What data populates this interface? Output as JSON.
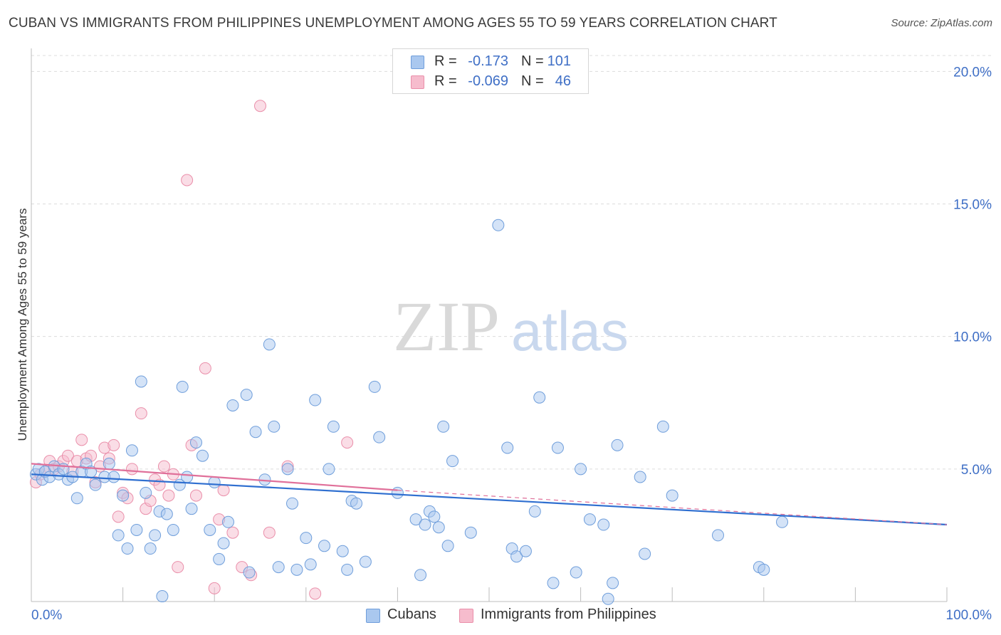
{
  "header": {
    "title": "CUBAN VS IMMIGRANTS FROM PHILIPPINES UNEMPLOYMENT AMONG AGES 55 TO 59 YEARS CORRELATION CHART",
    "source": "Source: ZipAtlas.com"
  },
  "watermark": {
    "zip": "ZIP",
    "atlas": "atlas"
  },
  "legend": {
    "rows": [
      {
        "r_label": "R =",
        "r_value": "-0.173",
        "n_label": "N =",
        "n_value": "101"
      },
      {
        "r_label": "R =",
        "r_value": "-0.069",
        "n_label": "N =",
        "n_value": "46"
      }
    ]
  },
  "bottom_legend": {
    "cubans": "Cubans",
    "philippines": "Immigrants from Philippines"
  },
  "chart_data": {
    "type": "scatter",
    "title": "CUBAN VS IMMIGRANTS FROM PHILIPPINES UNEMPLOYMENT AMONG AGES 55 TO 59 YEARS CORRELATION CHART",
    "xlabel": "",
    "ylabel": "Unemployment Among Ages 55 to 59 years",
    "xlim": [
      0,
      100
    ],
    "ylim": [
      0,
      20.6
    ],
    "x_tick_labels": [
      "0.0%",
      "100.0%"
    ],
    "y_ticks": [
      5,
      10,
      15,
      20
    ],
    "y_tick_labels": [
      "5.0%",
      "10.0%",
      "15.0%",
      "20.0%"
    ],
    "grid": true,
    "legend_position": "top-center",
    "colors": {
      "cubans_fill": "#aac8ef",
      "cubans_stroke": "#6f9edb",
      "cubans_line": "#2f6fd0",
      "phil_fill": "#f6bccd",
      "phil_stroke": "#ea8faa",
      "phil_line": "#e0709a",
      "axis_text": "#3f6fc6"
    },
    "series": [
      {
        "name": "Cubans",
        "r": -0.173,
        "n": 101,
        "trend": {
          "x": [
            0,
            100
          ],
          "y": [
            4.8,
            2.9
          ]
        },
        "points": [
          [
            0.5,
            4.8
          ],
          [
            0.8,
            5.0
          ],
          [
            1.2,
            4.6
          ],
          [
            1.5,
            4.9
          ],
          [
            2.0,
            4.7
          ],
          [
            2.5,
            5.1
          ],
          [
            3.0,
            4.8
          ],
          [
            3.5,
            5.0
          ],
          [
            4.0,
            4.6
          ],
          [
            4.5,
            4.7
          ],
          [
            5.0,
            3.9
          ],
          [
            5.5,
            4.9
          ],
          [
            6.0,
            5.2
          ],
          [
            6.5,
            4.9
          ],
          [
            7.0,
            4.4
          ],
          [
            8.0,
            4.7
          ],
          [
            8.5,
            5.2
          ],
          [
            9.0,
            4.7
          ],
          [
            9.5,
            2.5
          ],
          [
            10.0,
            4.0
          ],
          [
            10.5,
            2.0
          ],
          [
            11.0,
            5.7
          ],
          [
            11.5,
            2.7
          ],
          [
            12.0,
            8.3
          ],
          [
            12.5,
            4.1
          ],
          [
            13.0,
            2.0
          ],
          [
            13.5,
            2.5
          ],
          [
            14.0,
            3.4
          ],
          [
            14.3,
            0.2
          ],
          [
            14.8,
            3.3
          ],
          [
            15.5,
            2.7
          ],
          [
            16.2,
            4.4
          ],
          [
            16.5,
            8.1
          ],
          [
            17.0,
            4.7
          ],
          [
            17.5,
            3.5
          ],
          [
            18.0,
            6.0
          ],
          [
            18.7,
            5.5
          ],
          [
            19.5,
            2.7
          ],
          [
            20.0,
            4.5
          ],
          [
            20.5,
            1.6
          ],
          [
            21.0,
            2.2
          ],
          [
            21.5,
            3.0
          ],
          [
            22.0,
            7.4
          ],
          [
            23.5,
            7.8
          ],
          [
            23.8,
            1.1
          ],
          [
            24.5,
            6.4
          ],
          [
            25.5,
            4.6
          ],
          [
            26.0,
            9.7
          ],
          [
            26.5,
            6.6
          ],
          [
            27.0,
            1.3
          ],
          [
            28.0,
            5.0
          ],
          [
            28.5,
            3.7
          ],
          [
            29.0,
            1.2
          ],
          [
            30.0,
            2.4
          ],
          [
            30.5,
            1.4
          ],
          [
            31.0,
            7.6
          ],
          [
            32.0,
            2.1
          ],
          [
            32.5,
            5.0
          ],
          [
            33.0,
            6.6
          ],
          [
            34.0,
            1.9
          ],
          [
            34.5,
            1.2
          ],
          [
            35.0,
            3.8
          ],
          [
            35.5,
            3.7
          ],
          [
            36.5,
            1.5
          ],
          [
            37.5,
            8.1
          ],
          [
            38.0,
            6.2
          ],
          [
            40.0,
            4.1
          ],
          [
            42.0,
            3.1
          ],
          [
            42.5,
            1.0
          ],
          [
            43.0,
            2.9
          ],
          [
            43.5,
            3.4
          ],
          [
            44.0,
            3.2
          ],
          [
            44.5,
            2.8
          ],
          [
            45.0,
            6.6
          ],
          [
            45.5,
            2.1
          ],
          [
            46.0,
            5.3
          ],
          [
            48.0,
            2.6
          ],
          [
            51.0,
            14.2
          ],
          [
            52.0,
            5.8
          ],
          [
            52.5,
            2.0
          ],
          [
            53.0,
            1.7
          ],
          [
            54.0,
            1.9
          ],
          [
            55.0,
            3.4
          ],
          [
            55.5,
            7.7
          ],
          [
            57.0,
            0.7
          ],
          [
            57.5,
            5.8
          ],
          [
            59.5,
            1.1
          ],
          [
            60.0,
            5.0
          ],
          [
            61.0,
            3.1
          ],
          [
            62.5,
            2.9
          ],
          [
            63.0,
            0.1
          ],
          [
            63.5,
            0.7
          ],
          [
            64.0,
            5.9
          ],
          [
            66.5,
            4.7
          ],
          [
            67.0,
            1.8
          ],
          [
            69.0,
            6.6
          ],
          [
            70.0,
            4.0
          ],
          [
            75.0,
            2.5
          ],
          [
            79.5,
            1.3
          ],
          [
            80.0,
            1.2
          ],
          [
            82.0,
            3.0
          ]
        ]
      },
      {
        "name": "Immigrants from Philippines",
        "r": -0.069,
        "n": 46,
        "trend": {
          "x": [
            0,
            40
          ],
          "y": [
            5.2,
            4.2
          ]
        },
        "trend_extension": {
          "x": [
            40,
            100
          ],
          "y": [
            4.2,
            2.9
          ]
        },
        "points": [
          [
            0.5,
            4.5
          ],
          [
            1.0,
            4.8
          ],
          [
            1.5,
            4.9
          ],
          [
            2.0,
            5.3
          ],
          [
            2.5,
            5.0
          ],
          [
            3.0,
            5.1
          ],
          [
            3.5,
            5.3
          ],
          [
            4.0,
            5.5
          ],
          [
            4.5,
            4.9
          ],
          [
            5.0,
            5.3
          ],
          [
            5.5,
            6.1
          ],
          [
            6.0,
            5.4
          ],
          [
            6.5,
            5.5
          ],
          [
            7.0,
            4.5
          ],
          [
            7.5,
            5.1
          ],
          [
            8.0,
            5.8
          ],
          [
            8.5,
            5.4
          ],
          [
            9.0,
            5.9
          ],
          [
            9.5,
            3.2
          ],
          [
            10.0,
            4.1
          ],
          [
            10.5,
            3.9
          ],
          [
            11.0,
            5.0
          ],
          [
            12.0,
            7.1
          ],
          [
            12.5,
            3.5
          ],
          [
            13.0,
            3.8
          ],
          [
            13.5,
            4.6
          ],
          [
            14.0,
            4.4
          ],
          [
            14.5,
            5.1
          ],
          [
            15.0,
            4.0
          ],
          [
            15.5,
            4.8
          ],
          [
            16.0,
            1.3
          ],
          [
            17.0,
            15.9
          ],
          [
            17.5,
            5.9
          ],
          [
            18.0,
            4.0
          ],
          [
            19.0,
            8.8
          ],
          [
            20.0,
            0.5
          ],
          [
            20.5,
            3.1
          ],
          [
            21.0,
            4.2
          ],
          [
            22.0,
            2.6
          ],
          [
            23.0,
            1.3
          ],
          [
            24.0,
            1.0
          ],
          [
            25.0,
            18.7
          ],
          [
            26.0,
            2.6
          ],
          [
            28.0,
            5.1
          ],
          [
            31.0,
            0.3
          ],
          [
            34.5,
            6.0
          ]
        ]
      }
    ]
  }
}
